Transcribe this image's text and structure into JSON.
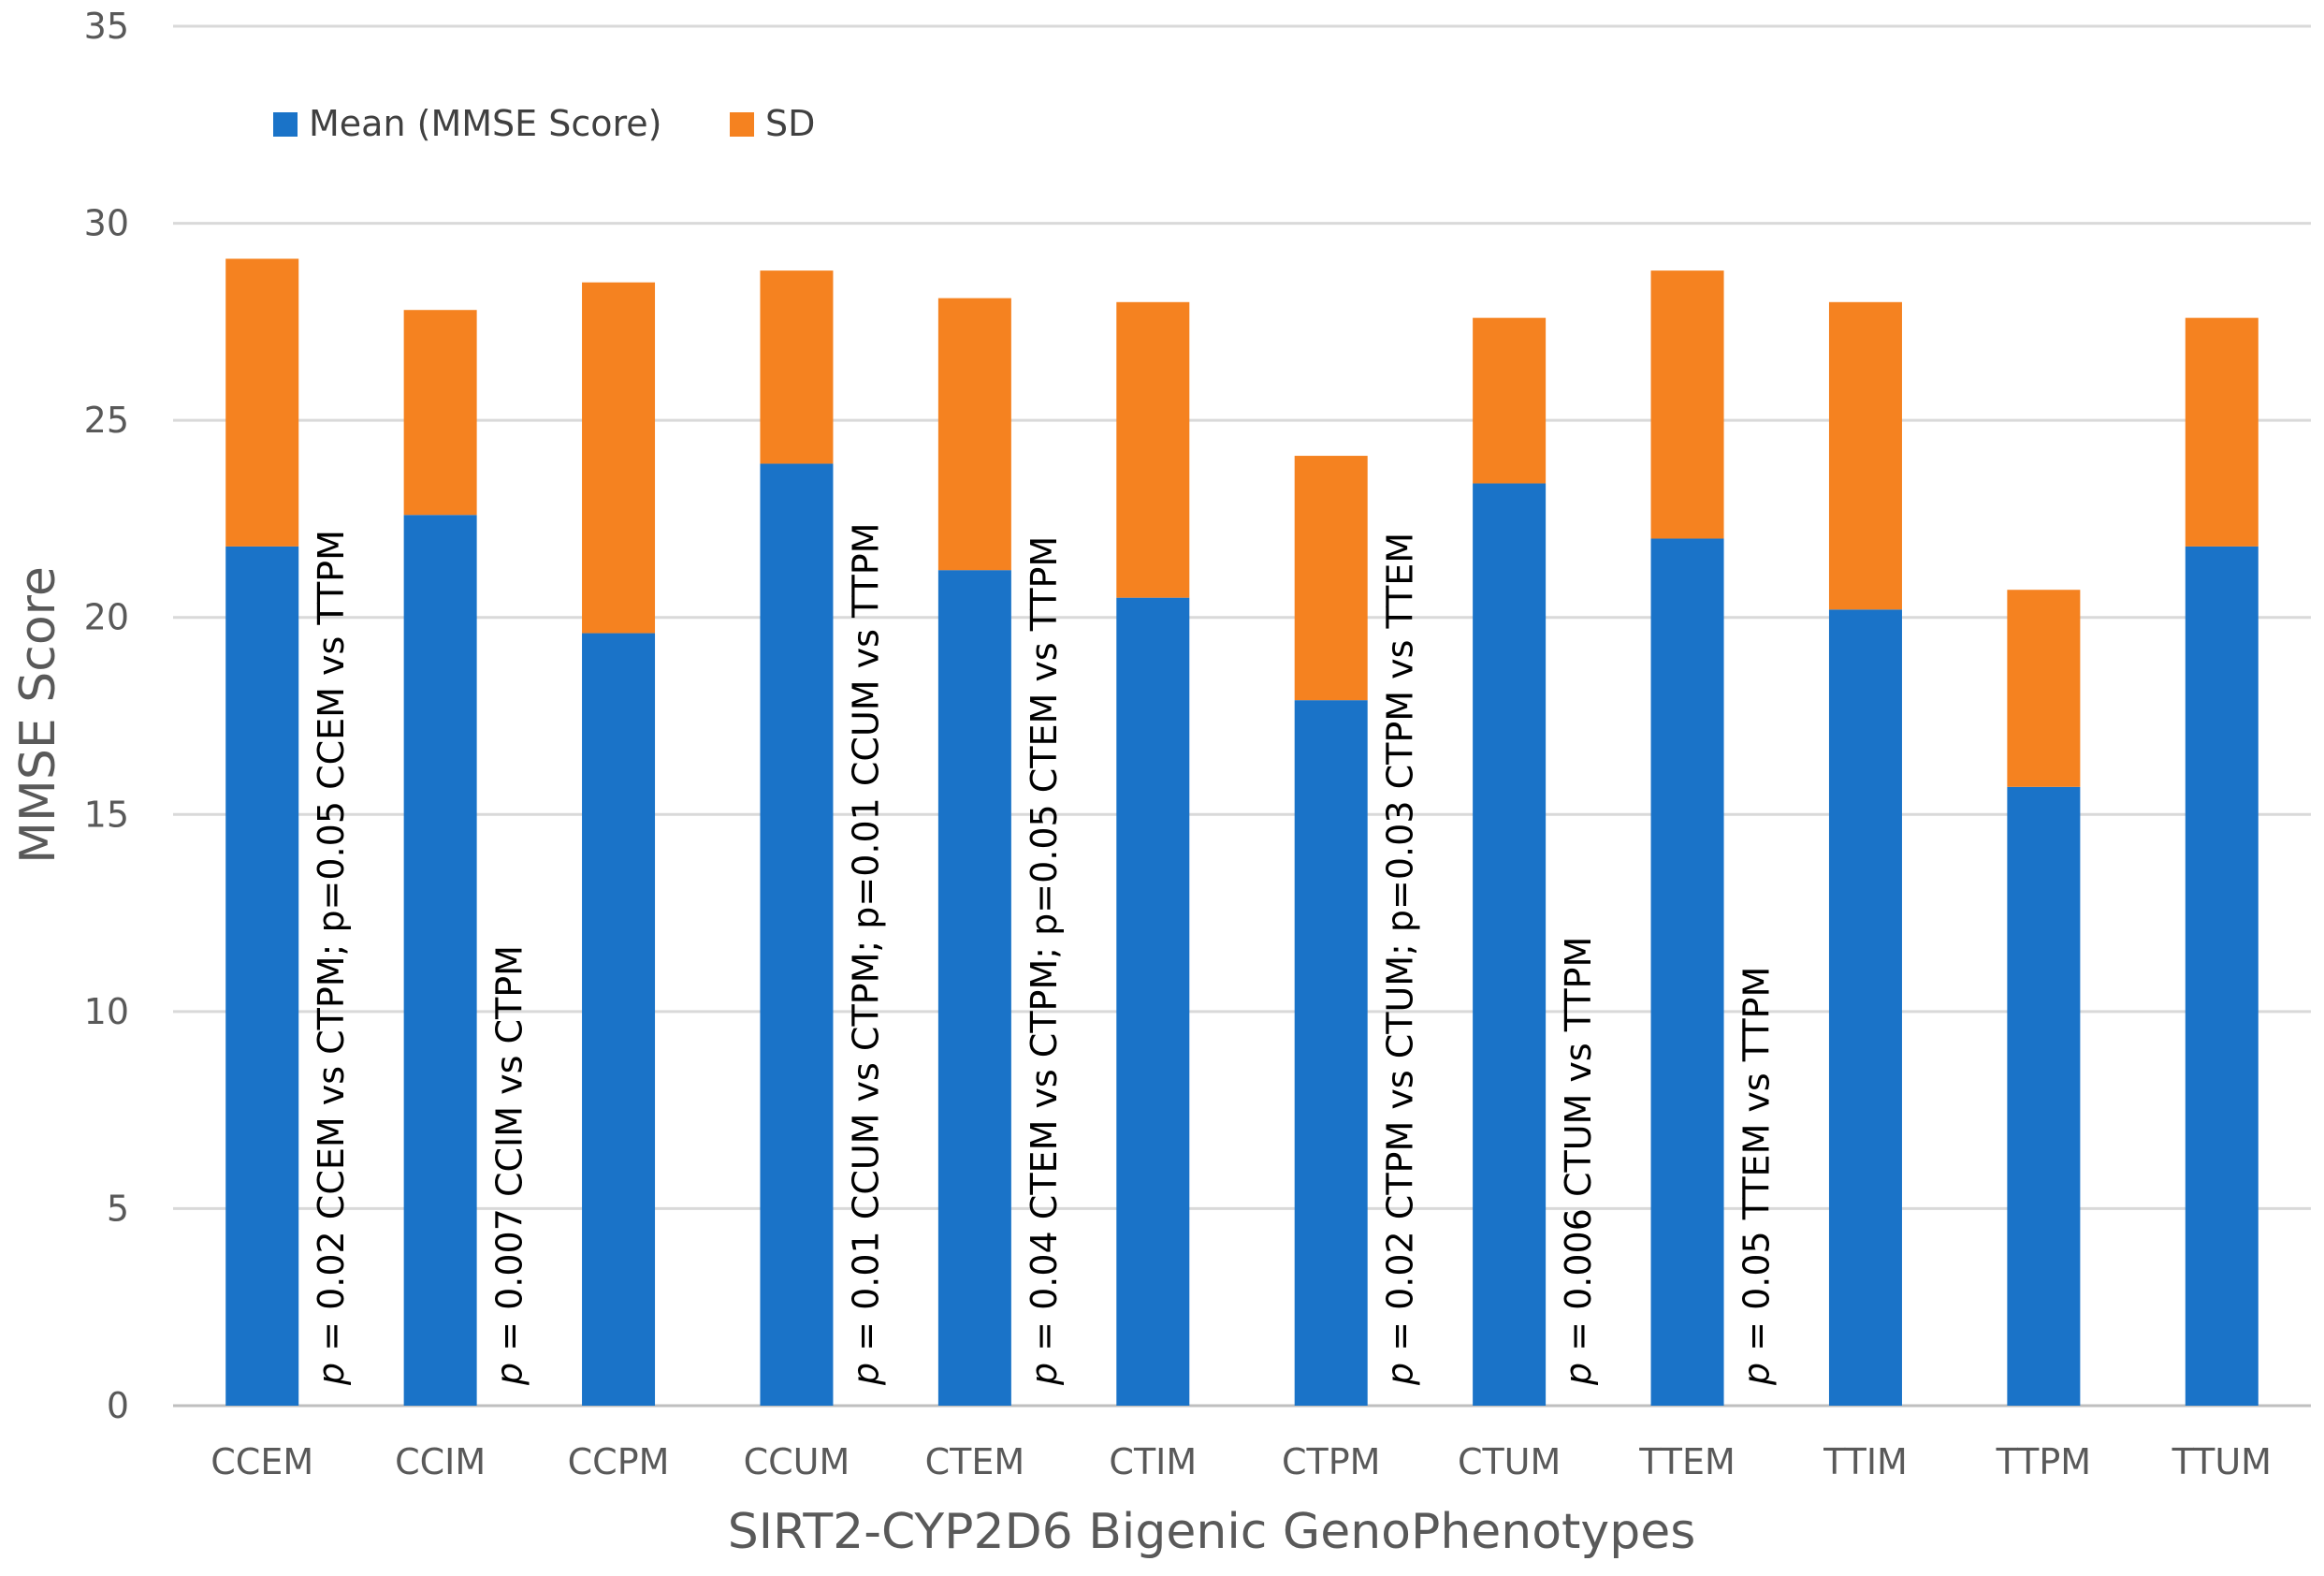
{
  "chart_data": {
    "type": "bar",
    "stacked": true,
    "title": "",
    "xlabel": "SIRT2-CYP2D6 Bigenic GenoPhenotypes",
    "ylabel": "MMSE Score",
    "ylim": [
      0,
      35
    ],
    "yticks": [
      0,
      5,
      10,
      15,
      20,
      25,
      30,
      35
    ],
    "grid": true,
    "legend_position": "top-left",
    "categories": [
      "CCEM",
      "CCIM",
      "CCPM",
      "CCUM",
      "CTEM",
      "CTIM",
      "CTPM",
      "CTUM",
      "TTEM",
      "TTIM",
      "TTPM",
      "TTUM"
    ],
    "series": [
      {
        "name": "Mean (MMSE Score)",
        "color": "#1a73c8",
        "values": [
          21.8,
          22.6,
          19.6,
          23.9,
          21.2,
          20.5,
          17.9,
          23.4,
          22.0,
          20.2,
          15.7,
          21.8
        ]
      },
      {
        "name": "SD",
        "color": "#f58220",
        "values": [
          7.3,
          5.2,
          8.9,
          4.9,
          6.9,
          7.5,
          6.2,
          4.2,
          6.8,
          7.8,
          5.0,
          5.8
        ]
      }
    ],
    "annotations": [
      {
        "category": "CCEM",
        "p": "p",
        "text": " = 0.02 CCEM vs CTPM; p=0.05 CCEM vs TTPM"
      },
      {
        "category": "CCIM",
        "p": "p",
        "text": " = 0.007 CCIM vs CTPM"
      },
      {
        "category": "CCUM",
        "p": "p",
        "text": " = 0.01 CCUM vs CTPM; p=0.01 CCUM vs TTPM"
      },
      {
        "category": "CTEM",
        "p": "p",
        "text": " = 0.04 CTEM vs CTPM; p=0.05 CTEM vs TTPM"
      },
      {
        "category": "CTPM",
        "p": "p",
        "text": " = 0.02 CTPM vs CTUM; p=0.03 CTPM vs TTEM"
      },
      {
        "category": "CTUM",
        "p": "p",
        "text": " = 0.006 CTUM vs TTPM"
      },
      {
        "category": "TTEM",
        "p": "p",
        "text": " = 0.05 TTEM vs TTPM"
      }
    ]
  }
}
